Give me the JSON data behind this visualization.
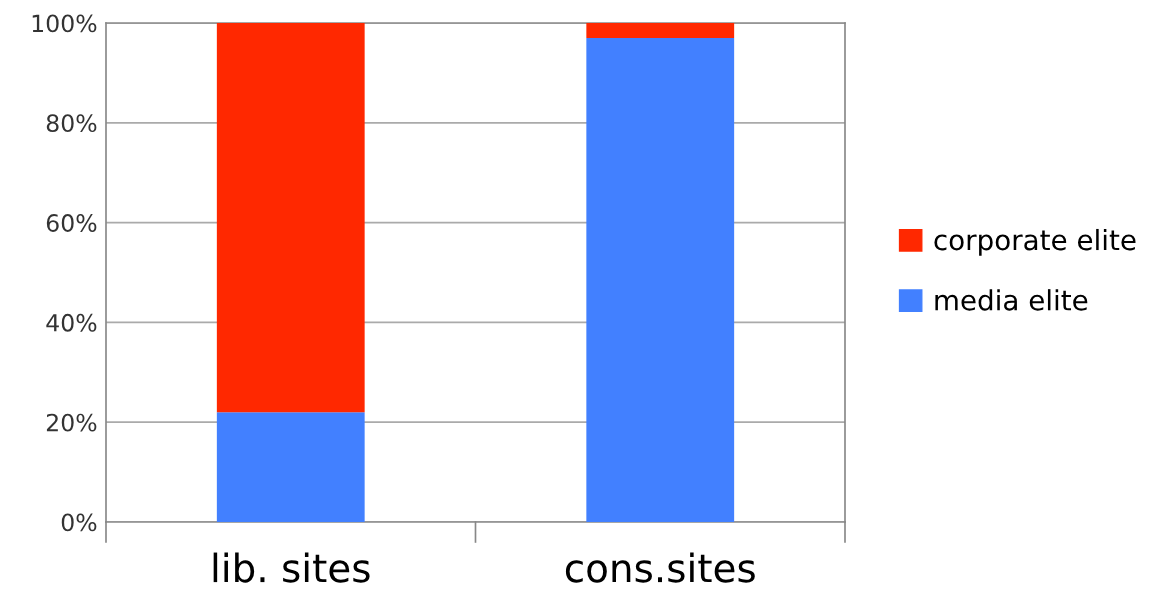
{
  "chart_data": {
    "type": "bar",
    "stacked": true,
    "categories": [
      "lib. sites",
      "cons.sites"
    ],
    "series": [
      {
        "name": "media elite",
        "color": "#4280ff",
        "values": [
          22,
          97
        ]
      },
      {
        "name": "corporate elite",
        "color": "#ff2800",
        "values": [
          78,
          3
        ]
      }
    ],
    "ylim": [
      0,
      100
    ],
    "yticks": [
      {
        "value": 0,
        "label": "0%"
      },
      {
        "value": 20,
        "label": "20%"
      },
      {
        "value": 40,
        "label": "40%"
      },
      {
        "value": 60,
        "label": "60%"
      },
      {
        "value": 80,
        "label": "80%"
      },
      {
        "value": 100,
        "label": "100%"
      }
    ],
    "grid": "y",
    "legend": "right"
  }
}
